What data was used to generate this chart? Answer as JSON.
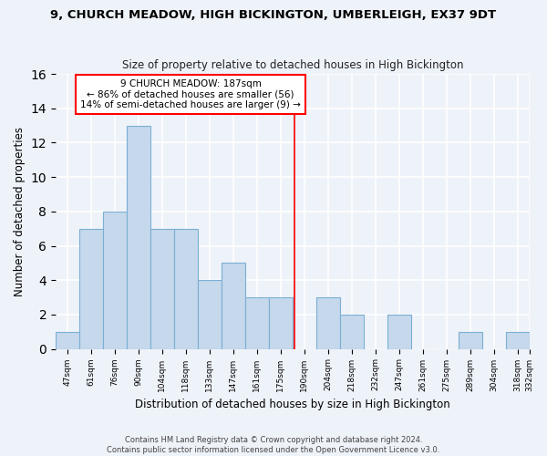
{
  "title": "9, CHURCH MEADOW, HIGH BICKINGTON, UMBERLEIGH, EX37 9DT",
  "subtitle": "Size of property relative to detached houses in High Bickington",
  "xlabel": "Distribution of detached houses by size in High Bickington",
  "ylabel": "Number of detached properties",
  "bin_labels": [
    "47sqm",
    "61sqm",
    "76sqm",
    "90sqm",
    "104sqm",
    "118sqm",
    "133sqm",
    "147sqm",
    "161sqm",
    "175sqm",
    "190sqm",
    "204sqm",
    "218sqm",
    "232sqm",
    "247sqm",
    "261sqm",
    "275sqm",
    "289sqm",
    "304sqm",
    "318sqm",
    "332sqm"
  ],
  "bar_values": [
    1,
    7,
    8,
    13,
    7,
    7,
    4,
    5,
    3,
    3,
    0,
    3,
    2,
    0,
    2,
    0,
    0,
    1,
    0,
    1
  ],
  "bar_color": "#c5d8ec",
  "bar_edge_color": "#7bafd4",
  "vline_x": 9.57,
  "vline_color": "red",
  "ylim": [
    0,
    16
  ],
  "yticks": [
    0,
    2,
    4,
    6,
    8,
    10,
    12,
    14,
    16
  ],
  "annotation_title": "9 CHURCH MEADOW: 187sqm",
  "annotation_line1": "← 86% of detached houses are smaller (56)",
  "annotation_line2": "14% of semi-detached houses are larger (9) →",
  "annotation_box_color": "#ffffff",
  "annotation_box_edge": "red",
  "footer_line1": "Contains HM Land Registry data © Crown copyright and database right 2024.",
  "footer_line2": "Contains public sector information licensed under the Open Government Licence v3.0.",
  "background_color": "#eef2f9",
  "grid_color": "#ffffff"
}
